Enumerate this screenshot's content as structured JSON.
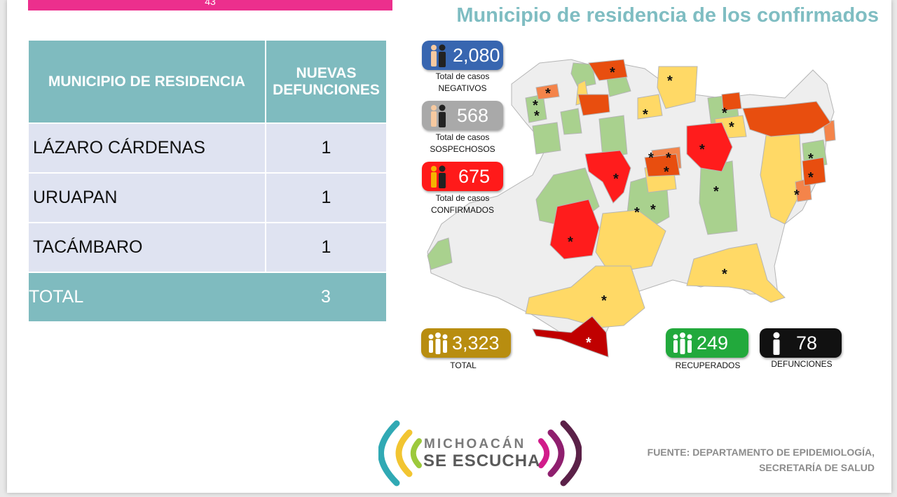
{
  "header": {
    "banner_number": "43",
    "map_title": "Municipio de residencia de los confirmados"
  },
  "table": {
    "headers": [
      "MUNICIPIO DE RESIDENCIA",
      "NUEVAS DEFUNCIONES"
    ],
    "rows": [
      {
        "municipio": "LÁZARO CÁRDENAS",
        "defunciones": "1"
      },
      {
        "municipio": "URUAPAN",
        "defunciones": "1"
      },
      {
        "municipio": "TACÁMBARO",
        "defunciones": "1"
      }
    ],
    "total": {
      "label": "TOTAL",
      "value": "3"
    }
  },
  "stats": {
    "negativos": {
      "value": "2,080",
      "caption_line1": "Total de casos",
      "caption_line2": "NEGATIVOS",
      "color": "#3866b0"
    },
    "sospechosos": {
      "value": "568",
      "caption_line1": "Total de casos",
      "caption_line2": "SOSPECHOSOS",
      "color": "#a9a9a9"
    },
    "confirmados": {
      "value": "675",
      "caption_line1": "Total de casos",
      "caption_line2": "CONFIRMADOS",
      "color": "#ff1a1a"
    },
    "total": {
      "value": "3,323",
      "caption": "TOTAL",
      "color": "#b88d10"
    },
    "recuperados": {
      "value": "249",
      "caption": "RECUPERADOS",
      "color": "#22a93c"
    },
    "defunciones": {
      "value": "78",
      "caption": "DEFUNCIONES",
      "color": "#111111"
    }
  },
  "map_colors": {
    "none": "#eeeeee",
    "low": "#a9d18e",
    "medium": "#ffd966",
    "high": "#f4844a",
    "very_high": "#ff1c1c",
    "severe": "#e84e0f",
    "max": "#c00000"
  },
  "logo": {
    "line1": "MICHOACÁN",
    "line2": "SE ESCUCHA"
  },
  "source": {
    "line1": "FUENTE: DEPARTAMENTO DE EPIDEMIOLOGÍA,",
    "line2": "SECRETARÍA DE SALUD"
  }
}
